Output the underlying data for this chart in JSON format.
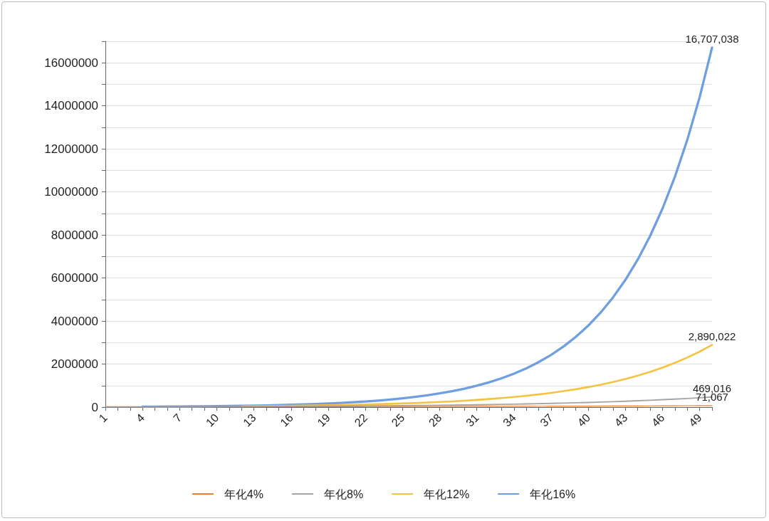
{
  "chart_data": {
    "type": "line",
    "categories": [
      "1",
      null,
      null,
      "4",
      null,
      null,
      "7",
      null,
      null,
      "10",
      null,
      null,
      "13",
      null,
      null,
      "16",
      null,
      null,
      "19",
      null,
      null,
      "22",
      null,
      null,
      "25",
      null,
      null,
      "28",
      null,
      null,
      "31",
      null,
      null,
      "34",
      null,
      null,
      "37",
      null,
      null,
      "40",
      null,
      null,
      "43",
      null,
      null,
      "46",
      null,
      null,
      "49",
      null
    ],
    "series": [
      {
        "name": "年化4%",
        "color": "#ed7d31",
        "values": [
          10000,
          11000,
          11000,
          12000,
          12000,
          13000,
          13000,
          14000,
          14000,
          15000,
          15000,
          16000,
          17000,
          17000,
          18000,
          19000,
          19000,
          20000,
          21000,
          22000,
          23000,
          24000,
          25000,
          26000,
          27000,
          28000,
          29000,
          30000,
          31000,
          32000,
          34000,
          35000,
          36000,
          38000,
          39000,
          41000,
          43000,
          44000,
          46000,
          48000,
          50000,
          52000,
          54000,
          56000,
          58000,
          61000,
          63000,
          66000,
          68000,
          71067
        ],
        "value_labels": [
          null,
          null,
          null,
          null,
          null,
          null,
          null,
          null,
          null,
          null,
          null,
          null,
          null,
          null,
          null,
          null,
          null,
          null,
          null,
          null,
          null,
          null,
          null,
          null,
          null,
          null,
          null,
          null,
          null,
          null,
          null,
          null,
          null,
          null,
          null,
          null,
          null,
          null,
          null,
          null,
          null,
          null,
          null,
          null,
          null,
          null,
          null,
          null,
          null,
          "71,067"
        ]
      },
      {
        "name": "年化8%",
        "color": "#a5a5a5",
        "values": [
          11000,
          12000,
          13000,
          14000,
          15000,
          16000,
          17000,
          19000,
          20000,
          22000,
          23000,
          25000,
          27000,
          29000,
          32000,
          34000,
          37000,
          40000,
          43000,
          47000,
          50000,
          54000,
          59000,
          63000,
          68000,
          74000,
          80000,
          86000,
          93000,
          101000,
          109000,
          117000,
          127000,
          137000,
          148000,
          160000,
          172000,
          186000,
          201000,
          217000,
          235000,
          253000,
          274000,
          296000,
          319000,
          345000,
          372000,
          402000,
          434000,
          469016
        ],
        "value_labels": [
          null,
          null,
          null,
          null,
          null,
          null,
          null,
          null,
          null,
          null,
          null,
          null,
          null,
          null,
          null,
          null,
          null,
          null,
          null,
          null,
          null,
          null,
          null,
          null,
          null,
          null,
          null,
          null,
          null,
          null,
          null,
          null,
          null,
          null,
          null,
          null,
          null,
          null,
          null,
          null,
          null,
          null,
          null,
          null,
          null,
          null,
          null,
          null,
          null,
          "469,016"
        ]
      },
      {
        "name": "年化12%",
        "color": "#f5c342",
        "values": [
          null,
          null,
          null,
          null,
          null,
          null,
          null,
          null,
          null,
          null,
          null,
          39000,
          44000,
          49000,
          55000,
          61000,
          69000,
          77000,
          86000,
          96000,
          108000,
          121000,
          136000,
          152000,
          170000,
          190000,
          213000,
          239000,
          267000,
          300000,
          336000,
          376000,
          421000,
          471000,
          528000,
          591000,
          662000,
          742000,
          831000,
          931000,
          1042000,
          1167000,
          1307000,
          1464000,
          1640000,
          1837000,
          2057000,
          2304000,
          2580000,
          2890022
        ],
        "value_labels": [
          null,
          null,
          null,
          null,
          null,
          null,
          null,
          null,
          null,
          null,
          null,
          null,
          null,
          null,
          null,
          null,
          null,
          null,
          null,
          null,
          null,
          null,
          null,
          null,
          null,
          null,
          null,
          null,
          null,
          null,
          null,
          null,
          null,
          null,
          null,
          null,
          null,
          null,
          null,
          null,
          null,
          null,
          null,
          null,
          null,
          null,
          null,
          null,
          null,
          "2,890,022"
        ]
      },
      {
        "name": "年化16%",
        "color": "#6f9fe0",
        "values": [
          null,
          null,
          null,
          18000,
          21000,
          24000,
          28000,
          33000,
          38000,
          44000,
          51000,
          59000,
          69000,
          80000,
          93000,
          107000,
          125000,
          145000,
          168000,
          195000,
          226000,
          262000,
          304000,
          352000,
          409000,
          474000,
          550000,
          638000,
          740000,
          858000,
          996000,
          1155000,
          1340000,
          1554000,
          1803000,
          2092000,
          2426000,
          2815000,
          3265000,
          3787000,
          4393000,
          5096000,
          5911000,
          6857000,
          7954000,
          9227000,
          10703000,
          12416000,
          14403000,
          16707038
        ],
        "value_labels": [
          null,
          null,
          null,
          null,
          null,
          null,
          null,
          null,
          null,
          null,
          null,
          null,
          null,
          null,
          null,
          null,
          null,
          null,
          null,
          null,
          null,
          null,
          null,
          null,
          null,
          null,
          null,
          null,
          null,
          null,
          null,
          null,
          null,
          null,
          null,
          null,
          null,
          null,
          null,
          null,
          null,
          null,
          null,
          null,
          null,
          null,
          null,
          null,
          null,
          "16,707,038"
        ]
      }
    ],
    "ylim": [
      0,
      17000000
    ],
    "yticks": [
      0,
      {
        "value": 1000000,
        "label": null
      },
      2000000,
      {
        "value": 3000000,
        "label": null
      },
      4000000,
      {
        "value": 5000000,
        "label": null
      },
      6000000,
      {
        "value": 7000000,
        "label": null
      },
      8000000,
      {
        "value": 9000000,
        "label": null
      },
      10000000,
      {
        "value": 11000000,
        "label": null
      },
      12000000,
      {
        "value": 13000000,
        "label": null
      },
      14000000,
      {
        "value": 15000000,
        "label": null
      },
      16000000,
      {
        "value": 17000000,
        "label": null
      }
    ],
    "grid": "y",
    "legend": "bottom",
    "marker": "none",
    "line_style": "solid"
  }
}
